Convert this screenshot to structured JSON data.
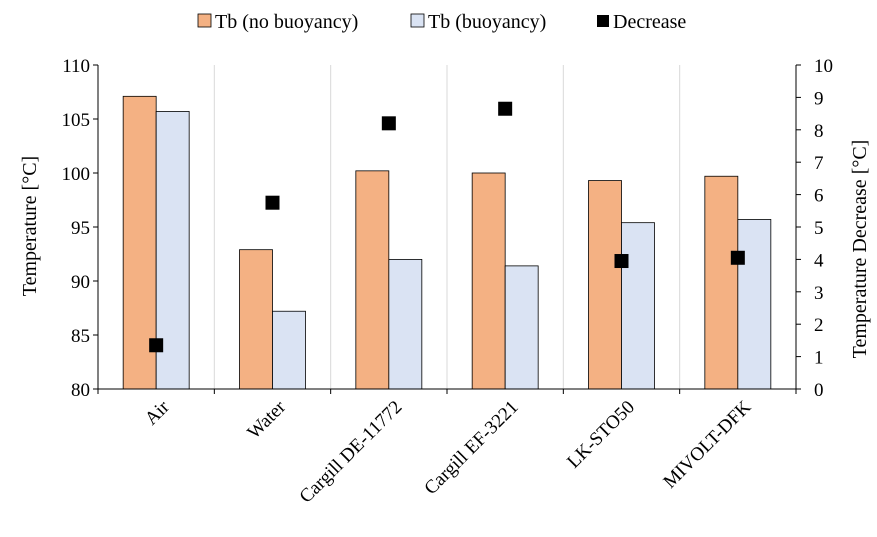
{
  "chart_data": {
    "type": "bar",
    "categories": [
      "Air",
      "Water",
      "Cargill DE-11772",
      "Cargill EF-3221",
      "LK-STO50",
      "MIVOLT-DFK"
    ],
    "series": [
      {
        "name": "Tb (no buoyancy)",
        "axis": "left",
        "mark": "bar",
        "color": "#F4B183",
        "values": [
          107.1,
          92.9,
          100.2,
          100.0,
          99.3,
          99.7
        ]
      },
      {
        "name": "Tb (buoyancy)",
        "axis": "left",
        "mark": "bar",
        "color": "#DAE3F3",
        "values": [
          105.7,
          87.2,
          92.0,
          91.4,
          95.4,
          95.7
        ]
      },
      {
        "name": "Decrease",
        "axis": "right",
        "mark": "square",
        "color": "#000000",
        "values": [
          1.35,
          5.75,
          8.2,
          8.65,
          3.95,
          4.05
        ]
      }
    ],
    "ylabel": "Temperature [°C]",
    "y2label": "Temperature Decrease [°C]",
    "ylim": [
      80,
      110
    ],
    "y2lim": [
      0,
      10
    ],
    "yticks": [
      80,
      85,
      90,
      95,
      100,
      105,
      110
    ],
    "y2ticks": [
      0,
      1,
      2,
      3,
      4,
      5,
      6,
      7,
      8,
      9,
      10
    ],
    "grid": "vertical",
    "legend_position": "top"
  }
}
